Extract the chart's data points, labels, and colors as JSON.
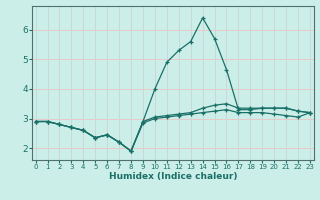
{
  "xlabel": "Humidex (Indice chaleur)",
  "background_color": "#cceee8",
  "grid_color_h": "#e8c8c8",
  "grid_color_v": "#c8d8d8",
  "line_color": "#1a7068",
  "spine_color": "#507070",
  "x_ticks": [
    0,
    1,
    2,
    3,
    4,
    5,
    6,
    7,
    8,
    9,
    10,
    11,
    12,
    13,
    14,
    15,
    16,
    17,
    18,
    19,
    20,
    21,
    22,
    23
  ],
  "y_ticks": [
    2,
    3,
    4,
    5,
    6
  ],
  "ylim": [
    1.6,
    6.8
  ],
  "xlim": [
    -0.3,
    23.3
  ],
  "curve_spike_x": [
    0,
    1,
    2,
    3,
    4,
    5,
    6,
    7,
    8,
    9,
    10,
    11,
    12,
    13,
    14,
    15,
    16,
    17,
    18,
    19,
    20,
    21,
    22,
    23
  ],
  "curve_spike_y": [
    2.9,
    2.9,
    2.8,
    2.7,
    2.6,
    2.35,
    2.45,
    2.2,
    1.9,
    2.9,
    4.0,
    4.9,
    5.3,
    5.6,
    6.4,
    5.7,
    4.65,
    3.3,
    3.3,
    3.35,
    3.35,
    3.35,
    3.25,
    3.2
  ],
  "curve_top_x": [
    0,
    1,
    2,
    3,
    4,
    5,
    6,
    7,
    8,
    9,
    10,
    11,
    12,
    13,
    14,
    15,
    16,
    17,
    18,
    19,
    20,
    21,
    22,
    23
  ],
  "curve_top_y": [
    2.9,
    2.9,
    2.8,
    2.7,
    2.6,
    2.35,
    2.45,
    2.2,
    1.9,
    2.9,
    3.05,
    3.1,
    3.15,
    3.2,
    3.35,
    3.45,
    3.5,
    3.35,
    3.35,
    3.35,
    3.35,
    3.35,
    3.25,
    3.2
  ],
  "curve_bot_x": [
    0,
    1,
    2,
    3,
    4,
    5,
    6,
    7,
    8,
    9,
    10,
    11,
    12,
    13,
    14,
    15,
    16,
    17,
    18,
    19,
    20,
    21,
    22,
    23
  ],
  "curve_bot_y": [
    2.9,
    2.9,
    2.8,
    2.7,
    2.6,
    2.35,
    2.45,
    2.2,
    1.9,
    2.85,
    3.0,
    3.05,
    3.1,
    3.15,
    3.2,
    3.25,
    3.3,
    3.2,
    3.2,
    3.2,
    3.15,
    3.1,
    3.05,
    3.2
  ]
}
